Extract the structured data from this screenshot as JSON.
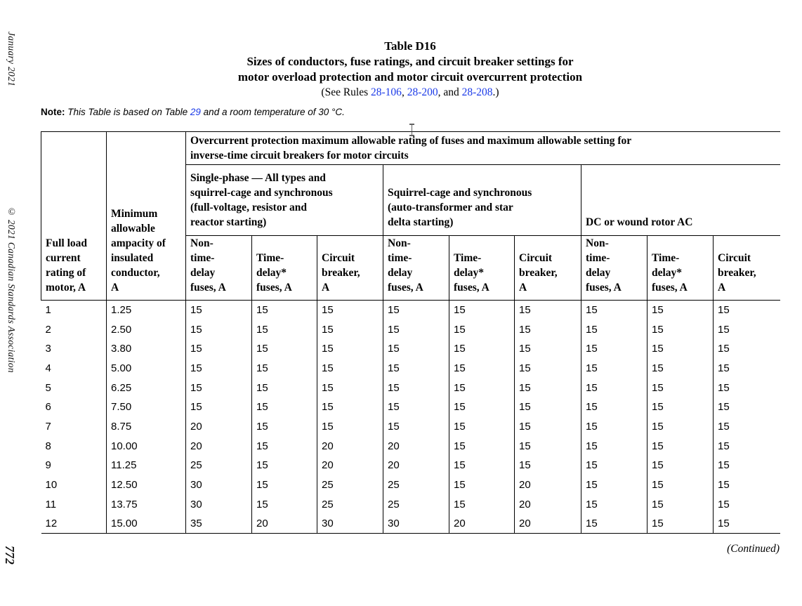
{
  "page": {
    "side_margin": {
      "date_text": "January 2021",
      "copyright_text": "© 2021 Canadian Standards Association",
      "page_number": "772"
    },
    "title": {
      "line1": "Table D16",
      "line2": "Sizes of conductors, fuse ratings, and circuit breaker settings for",
      "line3": "motor overload protection and motor circuit overcurrent protection",
      "rules_prefix": "(See Rules ",
      "rule1": "28-106",
      "sep1": ", ",
      "rule2": "28-200",
      "sep2": ", and ",
      "rule3": "28-208",
      "rules_suffix": ".)"
    },
    "note": {
      "label": "Note:",
      "text_before": "This Table is based on Table ",
      "link": "29",
      "text_after": " and a room temperature of 30 °C."
    },
    "continued": "(Continued)",
    "colors": {
      "link_blue": "#1c3be8",
      "border_black": "#000000"
    }
  },
  "table": {
    "headers": {
      "full_load": "Full load\ncurrent\nrating of\nmotor, A",
      "min_ampacity": "Minimum\nallowable\nampacity of\ninsulated\nconductor,\nA",
      "overcurrent": "Overcurrent protection maximum allowable rating of fuses and maximum allowable setting for\ninverse-time circuit breakers for motor circuits",
      "group_single_phase": "Single-phase — All types and\nsquirrel-cage and synchronous\n(full-voltage, resistor and\nreactor starting)",
      "group_squirrel_cage": "Squirrel-cage and synchronous\n(auto-transformer and star\ndelta starting)",
      "group_dc_wound": "DC or wound rotor AC",
      "sub_non_time_delay": "Non-\ntime-\ndelay\nfuses, A",
      "sub_time_delay": "Time-\ndelay*\nfuses, A",
      "sub_circuit_breaker": "Circuit\nbreaker,\nA"
    },
    "rows": [
      [
        "1",
        "1.25",
        "15",
        "15",
        "15",
        "15",
        "15",
        "15",
        "15",
        "15",
        "15"
      ],
      [
        "2",
        "2.50",
        "15",
        "15",
        "15",
        "15",
        "15",
        "15",
        "15",
        "15",
        "15"
      ],
      [
        "3",
        "3.80",
        "15",
        "15",
        "15",
        "15",
        "15",
        "15",
        "15",
        "15",
        "15"
      ],
      [
        "4",
        "5.00",
        "15",
        "15",
        "15",
        "15",
        "15",
        "15",
        "15",
        "15",
        "15"
      ],
      [
        "5",
        "6.25",
        "15",
        "15",
        "15",
        "15",
        "15",
        "15",
        "15",
        "15",
        "15"
      ],
      [
        "6",
        "7.50",
        "15",
        "15",
        "15",
        "15",
        "15",
        "15",
        "15",
        "15",
        "15"
      ],
      [
        "7",
        "8.75",
        "20",
        "15",
        "15",
        "15",
        "15",
        "15",
        "15",
        "15",
        "15"
      ],
      [
        "8",
        "10.00",
        "20",
        "15",
        "20",
        "20",
        "15",
        "15",
        "15",
        "15",
        "15"
      ],
      [
        "9",
        "11.25",
        "25",
        "15",
        "20",
        "20",
        "15",
        "15",
        "15",
        "15",
        "15"
      ],
      [
        "10",
        "12.50",
        "30",
        "15",
        "25",
        "25",
        "15",
        "20",
        "15",
        "15",
        "15"
      ],
      [
        "11",
        "13.75",
        "30",
        "15",
        "25",
        "25",
        "15",
        "20",
        "15",
        "15",
        "15"
      ],
      [
        "12",
        "15.00",
        "35",
        "20",
        "30",
        "30",
        "20",
        "20",
        "15",
        "15",
        "15"
      ]
    ]
  }
}
